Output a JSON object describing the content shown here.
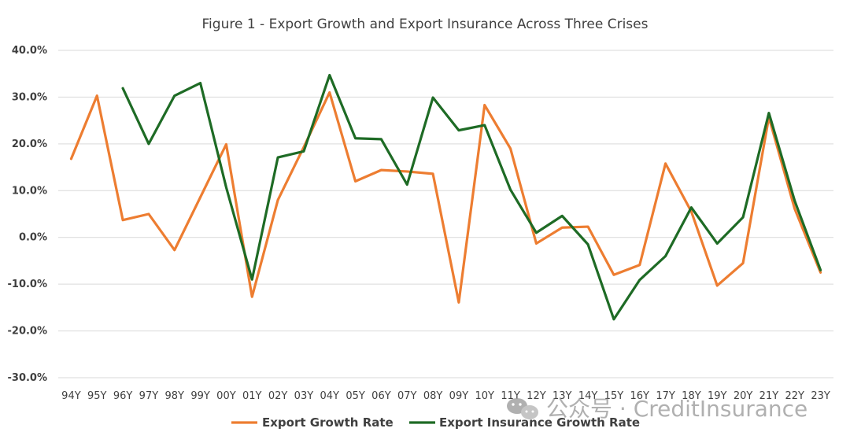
{
  "chart_data": {
    "type": "line",
    "title": "Figure 1 - Export Growth and Export Insurance Across Three Crises",
    "xlabel": "",
    "ylabel": "",
    "categories": [
      "94Y",
      "95Y",
      "96Y",
      "97Y",
      "98Y",
      "99Y",
      "00Y",
      "01Y",
      "02Y",
      "03Y",
      "04Y",
      "05Y",
      "06Y",
      "07Y",
      "08Y",
      "09Y",
      "10Y",
      "11Y",
      "12Y",
      "13Y",
      "14Y",
      "15Y",
      "16Y",
      "17Y",
      "18Y",
      "19Y",
      "20Y",
      "21Y",
      "22Y",
      "23Y"
    ],
    "yticks": [
      "-30.0%",
      "-20.0%",
      "-10.0%",
      "0.0%",
      "10.0%",
      "20.0%",
      "30.0%",
      "40.0%"
    ],
    "ylim": [
      -30,
      40
    ],
    "grid": true,
    "legend_position": "bottom",
    "series": [
      {
        "name": "Export Growth Rate",
        "color": "#ED7D31",
        "values": [
          16.8,
          30.3,
          3.7,
          5.0,
          -2.7,
          8.6,
          19.9,
          -12.7,
          8.0,
          19.3,
          31.0,
          12.0,
          14.4,
          14.1,
          13.6,
          -13.9,
          28.3,
          19.0,
          -1.3,
          2.1,
          2.3,
          -8.0,
          -5.9,
          15.8,
          5.5,
          -10.3,
          -5.5,
          25.7,
          6.1,
          -7.5
        ]
      },
      {
        "name": "Export Insurance Growth Rate",
        "color": "#1E6B25",
        "values": [
          null,
          null,
          31.9,
          20.0,
          30.3,
          33.0,
          10.7,
          -9.0,
          17.1,
          18.4,
          34.7,
          21.2,
          21.0,
          11.3,
          29.9,
          22.9,
          24.0,
          10.2,
          1.0,
          4.6,
          -1.5,
          -17.5,
          -9.1,
          -4.0,
          6.4,
          -1.3,
          4.3,
          26.6,
          7.8,
          -7.0
        ]
      }
    ]
  },
  "watermark": {
    "icon": "wechat-icon",
    "text": "公众号 · CreditInsurance"
  }
}
